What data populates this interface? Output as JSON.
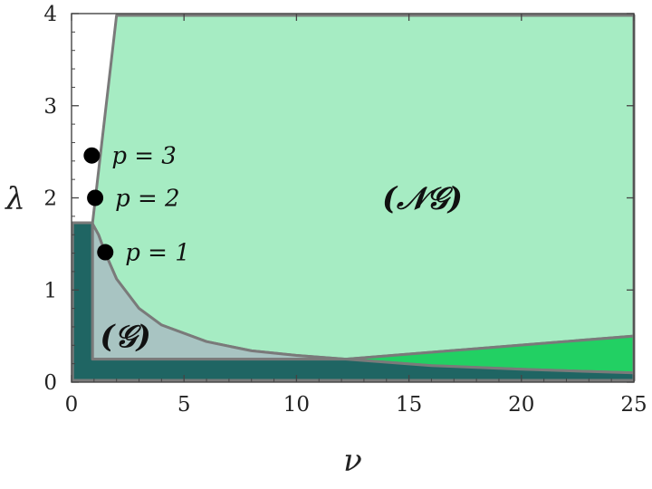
{
  "chart_data": {
    "type": "area",
    "title": "",
    "xlabel": "ν",
    "ylabel": "λ",
    "xlim": [
      0,
      25
    ],
    "ylim": [
      0,
      4
    ],
    "xticks": [
      0,
      5,
      10,
      15,
      20,
      25
    ],
    "yticks": [
      0,
      1,
      2,
      3,
      4
    ],
    "grid": false,
    "colors": {
      "ng_region": "#a6ecc3",
      "g_region": "#a8c4c2",
      "bright_region": "#22d063",
      "dark_region": "#1f6563",
      "boundary": "#7a7a7a",
      "point": "#000000"
    },
    "regions": [
      {
        "label": "(𝒩𝒢)",
        "label_at": [
          15.6,
          2.0
        ],
        "polygon": [
          [
            0.93,
            1.72
          ],
          [
            2.0,
            3.98
          ],
          [
            25,
            3.98
          ],
          [
            25,
            0.5
          ],
          [
            12.2,
            0.25
          ],
          [
            10,
            0.29
          ],
          [
            8,
            0.34
          ],
          [
            6,
            0.44
          ],
          [
            4,
            0.62
          ],
          [
            3,
            0.8
          ],
          [
            2,
            1.12
          ],
          [
            1.5,
            1.4
          ],
          [
            1.2,
            1.6
          ]
        ]
      },
      {
        "label": "(𝒢)",
        "label_at": [
          2.4,
          0.5
        ],
        "polygon": [
          [
            0.93,
            1.72
          ],
          [
            1.2,
            1.6
          ],
          [
            1.5,
            1.4
          ],
          [
            2,
            1.12
          ],
          [
            3,
            0.8
          ],
          [
            4,
            0.62
          ],
          [
            6,
            0.44
          ],
          [
            8,
            0.34
          ],
          [
            10,
            0.29
          ],
          [
            12.2,
            0.25
          ],
          [
            0.93,
            0.25
          ]
        ]
      },
      {
        "label": "",
        "polygon": [
          [
            12.2,
            0.25
          ],
          [
            25,
            0.5
          ],
          [
            25,
            0.1
          ],
          [
            20,
            0.14
          ],
          [
            16,
            0.18
          ]
        ]
      },
      {
        "label": "",
        "polygon": [
          [
            0.05,
            1.73
          ],
          [
            0.93,
            1.73
          ],
          [
            0.93,
            0.25
          ],
          [
            12.2,
            0.25
          ],
          [
            16,
            0.18
          ],
          [
            20,
            0.14
          ],
          [
            25,
            0.1
          ],
          [
            25,
            0.02
          ],
          [
            0.05,
            0.02
          ]
        ]
      }
    ],
    "points": [
      {
        "label": "p = 1",
        "x": 1.5,
        "y": 1.41
      },
      {
        "label": "p = 2",
        "x": 1.05,
        "y": 2.0
      },
      {
        "label": "p = 3",
        "x": 0.9,
        "y": 2.46
      }
    ]
  }
}
